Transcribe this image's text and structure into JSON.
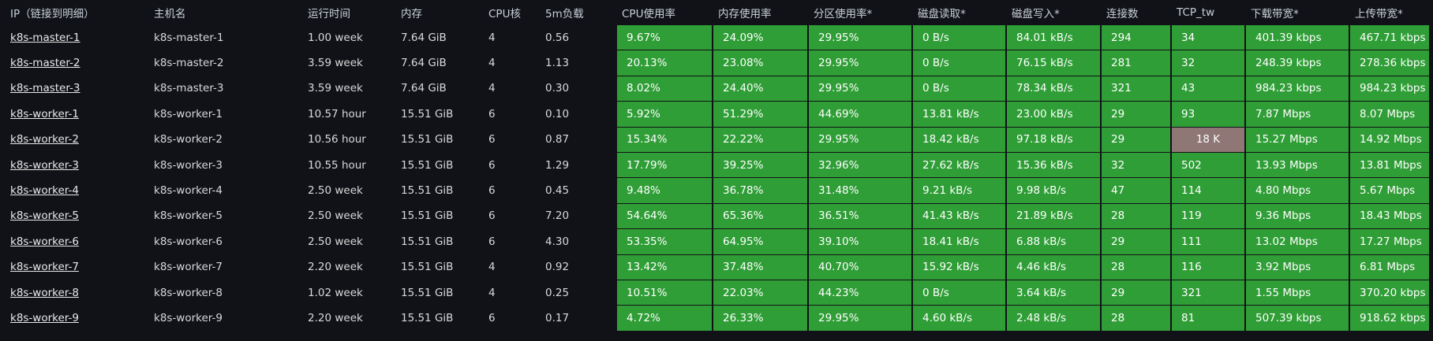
{
  "table": {
    "headers": [
      "IP（链接到明细）",
      "主机名",
      "运行时间",
      "内存",
      "CPU核",
      "5m负载",
      "CPU使用率",
      "内存使用率",
      "分区使用率*",
      "磁盘读取*",
      "磁盘写入*",
      "连接数",
      "TCP_tw",
      "下载带宽*",
      "上传带宽*"
    ],
    "rows": [
      [
        "k8s-master-1",
        "k8s-master-1",
        "1.00 week",
        "7.64 GiB",
        "4",
        "0.56",
        "9.67%",
        "24.09%",
        "29.95%",
        "0 B/s",
        "84.01 kB/s",
        "294",
        "34",
        "401.39 kbps",
        "467.71 kbps"
      ],
      [
        "k8s-master-2",
        "k8s-master-2",
        "3.59 week",
        "7.64 GiB",
        "4",
        "1.13",
        "20.13%",
        "23.08%",
        "29.95%",
        "0 B/s",
        "76.15 kB/s",
        "281",
        "32",
        "248.39 kbps",
        "278.36 kbps"
      ],
      [
        "k8s-master-3",
        "k8s-master-3",
        "3.59 week",
        "7.64 GiB",
        "4",
        "0.30",
        "8.02%",
        "24.40%",
        "29.95%",
        "0 B/s",
        "78.34 kB/s",
        "321",
        "43",
        "984.23 kbps",
        "984.23 kbps"
      ],
      [
        "k8s-worker-1",
        "k8s-worker-1",
        "10.57 hour",
        "15.51 GiB",
        "6",
        "0.10",
        "5.92%",
        "51.29%",
        "44.69%",
        "13.81 kB/s",
        "23.00 kB/s",
        "29",
        "93",
        "7.87 Mbps",
        "8.07 Mbps"
      ],
      [
        "k8s-worker-2",
        "k8s-worker-2",
        "10.56 hour",
        "15.51 GiB",
        "6",
        "0.87",
        "15.34%",
        "22.22%",
        "29.95%",
        "18.42 kB/s",
        "97.18 kB/s",
        "29",
        "18 K",
        "15.27 Mbps",
        "14.92 Mbps"
      ],
      [
        "k8s-worker-3",
        "k8s-worker-3",
        "10.55 hour",
        "15.51 GiB",
        "6",
        "1.29",
        "17.79%",
        "39.25%",
        "32.96%",
        "27.62 kB/s",
        "15.36 kB/s",
        "32",
        "502",
        "13.93 Mbps",
        "13.81 Mbps"
      ],
      [
        "k8s-worker-4",
        "k8s-worker-4",
        "2.50 week",
        "15.51 GiB",
        "6",
        "0.45",
        "9.48%",
        "36.78%",
        "31.48%",
        "9.21 kB/s",
        "9.98 kB/s",
        "47",
        "114",
        "4.80 Mbps",
        "5.67 Mbps"
      ],
      [
        "k8s-worker-5",
        "k8s-worker-5",
        "2.50 week",
        "15.51 GiB",
        "6",
        "7.20",
        "54.64%",
        "65.36%",
        "36.51%",
        "41.43 kB/s",
        "21.89 kB/s",
        "28",
        "119",
        "9.36 Mbps",
        "18.43 Mbps"
      ],
      [
        "k8s-worker-6",
        "k8s-worker-6",
        "2.50 week",
        "15.51 GiB",
        "6",
        "4.30",
        "53.35%",
        "64.95%",
        "39.10%",
        "18.41 kB/s",
        "6.88 kB/s",
        "29",
        "111",
        "13.02 Mbps",
        "17.27 Mbps"
      ],
      [
        "k8s-worker-7",
        "k8s-worker-7",
        "2.20 week",
        "15.51 GiB",
        "4",
        "0.92",
        "13.42%",
        "37.48%",
        "40.70%",
        "15.92 kB/s",
        "4.46 kB/s",
        "28",
        "116",
        "3.92 Mbps",
        "6.81 Mbps"
      ],
      [
        "k8s-worker-8",
        "k8s-worker-8",
        "1.02 week",
        "15.51 GiB",
        "4",
        "0.25",
        "10.51%",
        "22.03%",
        "44.23%",
        "0 B/s",
        "3.64 kB/s",
        "29",
        "321",
        "1.55 Mbps",
        "370.20 kbps"
      ],
      [
        "k8s-worker-9",
        "k8s-worker-9",
        "2.20 week",
        "15.51 GiB",
        "6",
        "0.17",
        "4.72%",
        "26.33%",
        "29.95%",
        "4.60 kB/s",
        "2.48 kB/s",
        "28",
        "81",
        "507.39 kbps",
        "918.62 kbps"
      ]
    ]
  }
}
